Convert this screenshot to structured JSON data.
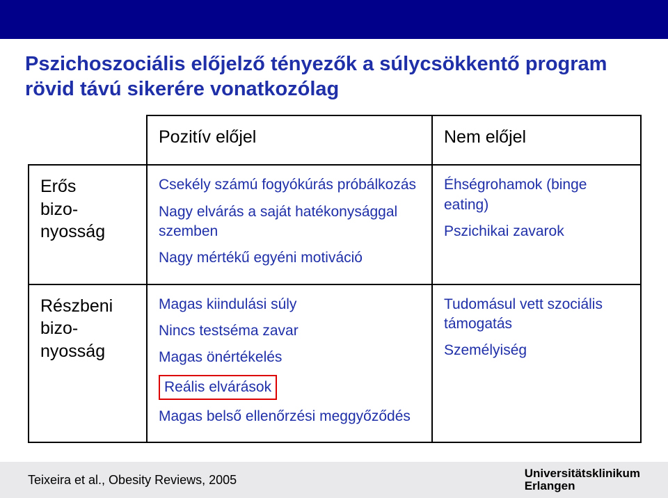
{
  "title": "Pszichoszociális előjelző tényezők a súlycsökkentő program rövid távú sikerére vonatkozólag",
  "table": {
    "header": {
      "col1": "Pozitív előjel",
      "col2": "Nem előjel"
    },
    "rows": [
      {
        "label_lines": [
          "Erős",
          "bizo-",
          "nyosság"
        ],
        "positive": [
          "Csekély számú fogyókúrás próbálkozás",
          "Nagy elvárás a saját hatékonysággal szemben",
          "Nagy mértékű egyéni motiváció"
        ],
        "negative": [
          "Éhségrohamok (binge eating)",
          "Pszichikai zavarok"
        ]
      },
      {
        "label_lines": [
          "Részbeni",
          "bizo-",
          "nyosság"
        ],
        "positive": [
          "Magas kiindulási súly",
          "Nincs testséma zavar",
          "Magas önértékelés",
          "Reális elvárások",
          "Magas belső ellenőrzési meggyőződés"
        ],
        "positive_boxed_index": 3,
        "negative": [
          "Tudomásul vett szociális támogatás",
          "Személyiség"
        ]
      }
    ]
  },
  "footer": {
    "citation": "Teixeira et al., Obesity Reviews, 2005",
    "institution_line1": "Universitätsklinikum",
    "institution_line2": "Erlangen"
  },
  "colors": {
    "top_bar": "#00008b",
    "title": "#1f2fa8",
    "body_text": "#1f2fa8",
    "border": "#000000",
    "box": "#d00000",
    "footer_bg": "#e9e9ec"
  }
}
